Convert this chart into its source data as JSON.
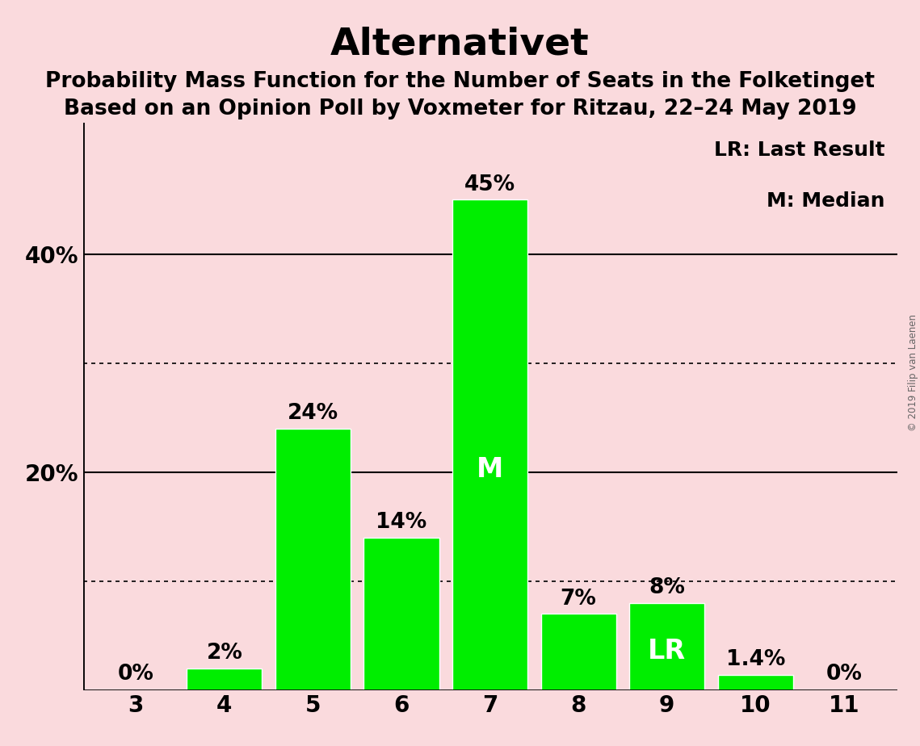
{
  "title": "Alternativet",
  "subtitle1": "Probability Mass Function for the Number of Seats in the Folketinget",
  "subtitle2": "Based on an Opinion Poll by Voxmeter for Ritzau, 22–24 May 2019",
  "seats": [
    3,
    4,
    5,
    6,
    7,
    8,
    9,
    10,
    11
  ],
  "probabilities": [
    0.0,
    2.0,
    24.0,
    14.0,
    45.0,
    7.0,
    8.0,
    1.4,
    0.0
  ],
  "bar_color": "#00ee00",
  "background_color": "#fadadd",
  "text_color": "#000000",
  "label_texts": [
    "0%",
    "2%",
    "24%",
    "14%",
    "45%",
    "7%",
    "8%",
    "1.4%",
    "0%"
  ],
  "median_seat": 7,
  "last_result_seat": 9,
  "median_label": "M",
  "lr_label": "LR",
  "legend_lr": "LR: Last Result",
  "legend_m": "M: Median",
  "ytick_positions": [
    20,
    40
  ],
  "ytick_labels": [
    "20%",
    "40%"
  ],
  "solid_grid_values": [
    20,
    40
  ],
  "dotted_grid_values": [
    10,
    30
  ],
  "ylim": [
    0,
    52
  ],
  "copyright_text": "© 2019 Filip van Laenen",
  "title_fontsize": 34,
  "subtitle_fontsize": 19,
  "bar_label_fontsize": 19,
  "ytick_fontsize": 20,
  "xtick_fontsize": 20,
  "legend_fontsize": 18,
  "inside_label_fontsize": 24
}
